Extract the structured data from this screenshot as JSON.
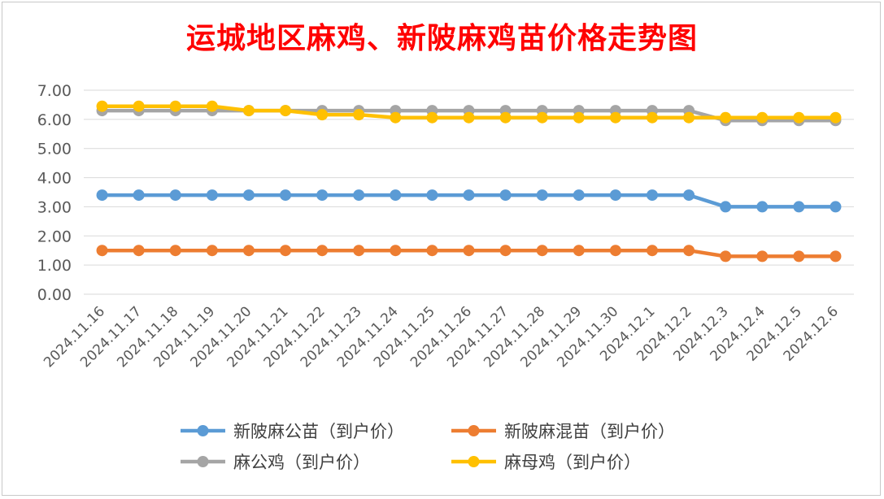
{
  "chart_data": {
    "type": "line",
    "title": "运城地区麻鸡、新陂麻鸡苗价格走势图",
    "xlabel": "",
    "ylabel": "",
    "ylim": [
      0,
      7
    ],
    "yticks": [
      "0.00",
      "1.00",
      "2.00",
      "3.00",
      "4.00",
      "5.00",
      "6.00",
      "7.00"
    ],
    "grid": true,
    "legend_position": "bottom",
    "categories": [
      "2024.11.16",
      "2024.11.17",
      "2024.11.18",
      "2024.11.19",
      "2024.11.20",
      "2024.11.21",
      "2024.11.22",
      "2024.11.23",
      "2024.11.24",
      "2024.11.25",
      "2024.11.26",
      "2024.11.27",
      "2024.11.28",
      "2024.11.29",
      "2024.11.30",
      "2024.12.1",
      "2024.12.2",
      "2024.12.3",
      "2024.12.4",
      "2024.12.5",
      "2024.12.6"
    ],
    "series": [
      {
        "name": "新陂麻公苗（到户价）",
        "color": "#5b9bd5",
        "values": [
          3.4,
          3.4,
          3.4,
          3.4,
          3.4,
          3.4,
          3.4,
          3.4,
          3.4,
          3.4,
          3.4,
          3.4,
          3.4,
          3.4,
          3.4,
          3.4,
          3.4,
          3.0,
          3.0,
          3.0,
          3.0
        ]
      },
      {
        "name": "新陂麻混苗（到户价）",
        "color": "#ed7d31",
        "values": [
          1.5,
          1.5,
          1.5,
          1.5,
          1.5,
          1.5,
          1.5,
          1.5,
          1.5,
          1.5,
          1.5,
          1.5,
          1.5,
          1.5,
          1.5,
          1.5,
          1.5,
          1.3,
          1.3,
          1.3,
          1.3
        ]
      },
      {
        "name": "麻公鸡（到户价）",
        "color": "#a5a5a5",
        "values": [
          6.3,
          6.3,
          6.3,
          6.3,
          6.3,
          6.3,
          6.3,
          6.3,
          6.3,
          6.3,
          6.3,
          6.3,
          6.3,
          6.3,
          6.3,
          6.3,
          6.3,
          5.96,
          5.96,
          5.96,
          5.96
        ]
      },
      {
        "name": "麻母鸡（到户价）",
        "color": "#ffc000",
        "values": [
          6.45,
          6.45,
          6.45,
          6.45,
          6.3,
          6.3,
          6.16,
          6.16,
          6.06,
          6.06,
          6.06,
          6.06,
          6.06,
          6.06,
          6.06,
          6.06,
          6.06,
          6.06,
          6.06,
          6.06,
          6.06
        ]
      }
    ]
  }
}
